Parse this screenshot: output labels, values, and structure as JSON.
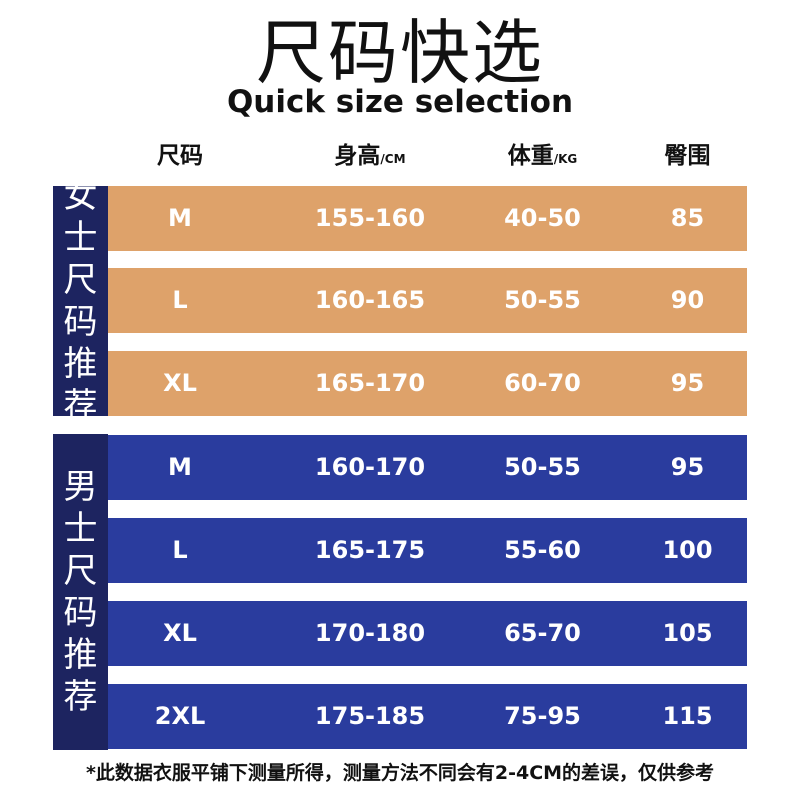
{
  "title": "尺码快选",
  "subtitle": "Quick size selection",
  "header": {
    "size": "尺码",
    "height": "身高",
    "height_unit": "/CM",
    "weight": "体重",
    "weight_unit": "/KG",
    "hip": "臀围"
  },
  "women": {
    "label_chars": [
      "女",
      "士",
      "尺",
      "码",
      "推",
      "荐"
    ],
    "rows": [
      {
        "size": "M",
        "height": "155-160",
        "weight": "40-50",
        "hip": "85"
      },
      {
        "size": "L",
        "height": "160-165",
        "weight": "50-55",
        "hip": "90"
      },
      {
        "size": "XL",
        "height": "165-170",
        "weight": "60-70",
        "hip": "95"
      }
    ]
  },
  "men": {
    "label_chars": [
      "男",
      "士",
      "尺",
      "码",
      "推",
      "荐"
    ],
    "rows": [
      {
        "size": "M",
        "height": "160-170",
        "weight": "50-55",
        "hip": "95"
      },
      {
        "size": "L",
        "height": "165-175",
        "weight": "55-60",
        "hip": "100"
      },
      {
        "size": "XL",
        "height": "170-180",
        "weight": "65-70",
        "hip": "105"
      },
      {
        "size": "2XL",
        "height": "175-185",
        "weight": "75-95",
        "hip": "115"
      }
    ]
  },
  "footnote": "*此数据衣服平铺下测量所得，测量方法不同会有2-4CM的差误，仅供参考",
  "colors": {
    "women_row": "#dea26a",
    "men_row": "#2a3c9e",
    "side_label": "#1d2460"
  }
}
